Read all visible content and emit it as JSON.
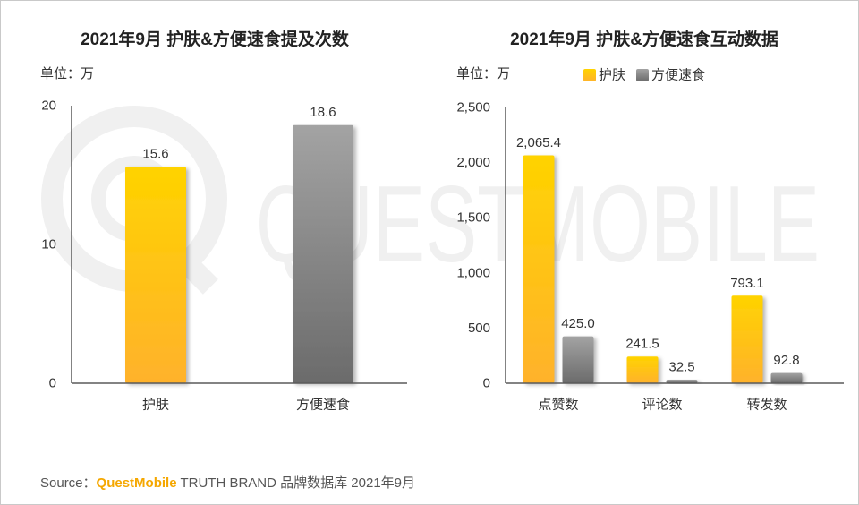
{
  "watermark": "QUESTMOBILE",
  "colors": {
    "护肤": {
      "top": "#FFD300",
      "bottom": "#FFB22C"
    },
    "方便速食": {
      "top": "#A3A3A3",
      "bottom": "#6B6B6B"
    }
  },
  "chart_data": [
    {
      "type": "bar",
      "title": "2021年9月 护肤&方便速食提及次数",
      "unit_label": "单位：万",
      "categories": [
        "护肤",
        "方便速食"
      ],
      "values": [
        15.6,
        18.6
      ],
      "labels": [
        "15.6",
        "18.6"
      ],
      "ylim": [
        0,
        20
      ],
      "yticks": [
        0,
        10,
        20
      ],
      "ytick_labels": [
        "0",
        "10",
        "20"
      ],
      "grid": false
    },
    {
      "type": "bar",
      "title": "2021年9月 护肤&方便速食互动数据",
      "unit_label": "单位：万",
      "categories": [
        "点赞数",
        "评论数",
        "转发数"
      ],
      "series": [
        {
          "name": "护肤",
          "values": [
            2065.4,
            241.5,
            793.1
          ],
          "labels": [
            "2,065.4",
            "241.5",
            "793.1"
          ]
        },
        {
          "name": "方便速食",
          "values": [
            425.0,
            32.5,
            92.8
          ],
          "labels": [
            "425.0",
            "32.5",
            "92.8"
          ]
        }
      ],
      "ylim": [
        0,
        2500
      ],
      "yticks": [
        0,
        500,
        1000,
        1500,
        2000,
        2500
      ],
      "ytick_labels": [
        "0",
        "500",
        "1,000",
        "1,500",
        "2,000",
        "2,500"
      ],
      "grid": false,
      "legend": "top"
    }
  ],
  "source": {
    "prefix": "Source：",
    "brand": "QuestMobile",
    "suffix": "TRUTH BRAND 品牌数据库 2021年9月",
    "brand_color": "#F5A700"
  }
}
